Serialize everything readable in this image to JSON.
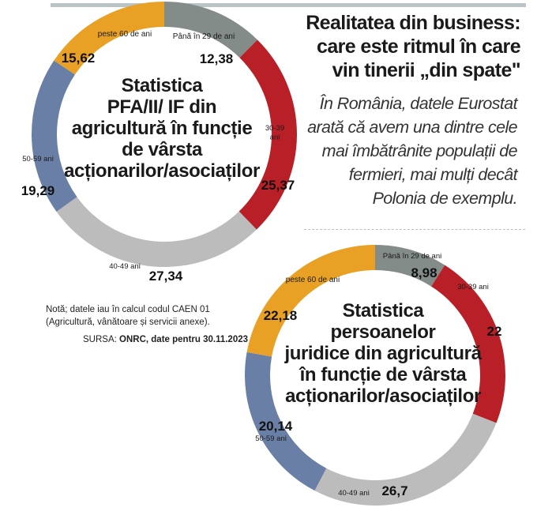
{
  "header": {
    "title_line1": "Realitatea din business:",
    "title_line2": "care este ritmul în care",
    "title_line3": "vin tinerii „din spate\""
  },
  "intro": "În România, datele Eurostat arată că avem una dintre cele mai îmbătrânite populații de fermieri, mai mulți decât Polonia de exemplu.",
  "note": "Notă; datele iau în calcul codul CAEN 01 (Agricultură, vânătoare și servicii anexe).",
  "source": {
    "prefix": "SURSA:",
    "text": "ONRC, date pentru 30.11.2023"
  },
  "colors": {
    "pana_29": "#848c8a",
    "30_39": "#b91f26",
    "40_49": "#bcbcbd",
    "50_59": "#6a7fa5",
    "peste_60": "#e9a125"
  },
  "chart_data": [
    {
      "type": "pie",
      "title_lines": [
        "Statistica",
        "PFA/II/ IF din",
        "agricultură în funcție",
        "de vârsta",
        "acționarilor/asociaților"
      ],
      "categories": [
        "Până în 29 de ani",
        "30-39 ani",
        "40-49 ani",
        "50-59 ani",
        "peste 60 de ani"
      ],
      "values": [
        12.38,
        25.37,
        27.34,
        19.29,
        15.62
      ],
      "value_labels": [
        "12,38",
        "25,37",
        "27,34",
        "19,29",
        "15,62"
      ]
    },
    {
      "type": "pie",
      "title_lines": [
        "Statistica",
        "persoanelor",
        "juridice din agricultură",
        "în funcție de vârsta",
        "acționarilor/asociaților"
      ],
      "categories": [
        "Până în 29 de ani",
        "30-39 ani",
        "40-49 ani",
        "50-59 ani",
        "peste 60 de ani"
      ],
      "values": [
        8.98,
        22,
        26.7,
        20.14,
        22.18
      ],
      "value_labels": [
        "8,98",
        "22",
        "26,7",
        "20,14",
        "22,18"
      ]
    }
  ]
}
